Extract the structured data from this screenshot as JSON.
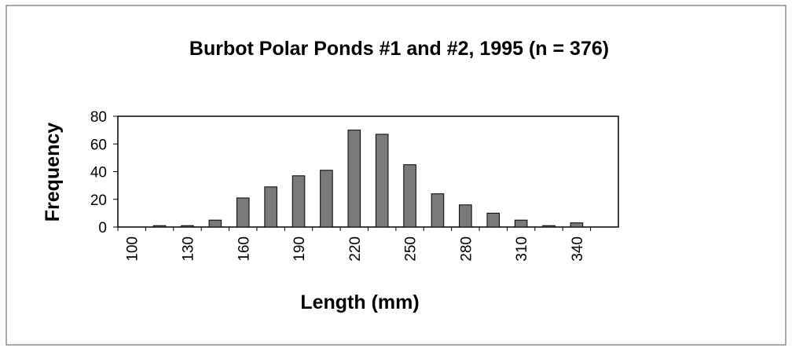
{
  "chart_data": {
    "type": "bar",
    "title": "Burbot Polar Ponds #1 and #2, 1995 (n = 376)",
    "x_label": "Length (mm)",
    "y_label": "Frequency",
    "categories": [
      100,
      null,
      130,
      null,
      160,
      null,
      190,
      null,
      220,
      null,
      250,
      null,
      280,
      null,
      310,
      null,
      340,
      null
    ],
    "values": [
      0,
      1,
      1,
      5,
      21,
      29,
      37,
      41,
      70,
      67,
      45,
      24,
      16,
      10,
      5,
      1,
      3,
      0
    ],
    "color": "#7a7a7a",
    "ylim": [
      0,
      80
    ],
    "yticks": [
      0,
      20,
      40,
      60,
      80
    ]
  }
}
